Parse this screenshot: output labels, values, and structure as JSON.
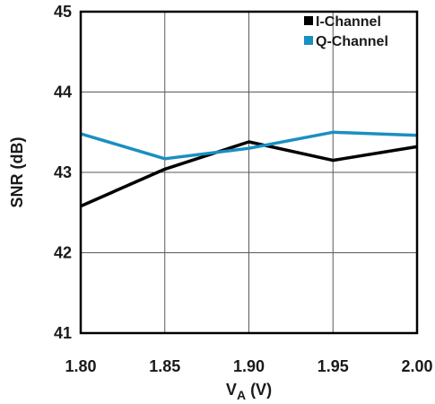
{
  "chart_data": {
    "type": "line",
    "x": [
      1.8,
      1.85,
      1.9,
      1.95,
      2.0
    ],
    "x_tick_labels": [
      "1.80",
      "1.85",
      "1.90",
      "1.95",
      "2.00"
    ],
    "y_tick_labels": [
      "41",
      "42",
      "43",
      "44",
      "45"
    ],
    "xlim": [
      1.8,
      2.0
    ],
    "ylim": [
      41,
      45
    ],
    "xlabel": {
      "main": "V",
      "sub": "A",
      "suffix": " (V)"
    },
    "ylabel": "SNR (dB)",
    "grid": true,
    "legend_position": "top-right",
    "series": [
      {
        "name": "I-Channel",
        "color": "#000000",
        "values": [
          42.58,
          43.04,
          43.38,
          43.15,
          43.32
        ]
      },
      {
        "name": "Q-Channel",
        "color": "#1a8fc1",
        "values": [
          43.48,
          43.17,
          43.3,
          43.5,
          43.46
        ]
      }
    ]
  }
}
